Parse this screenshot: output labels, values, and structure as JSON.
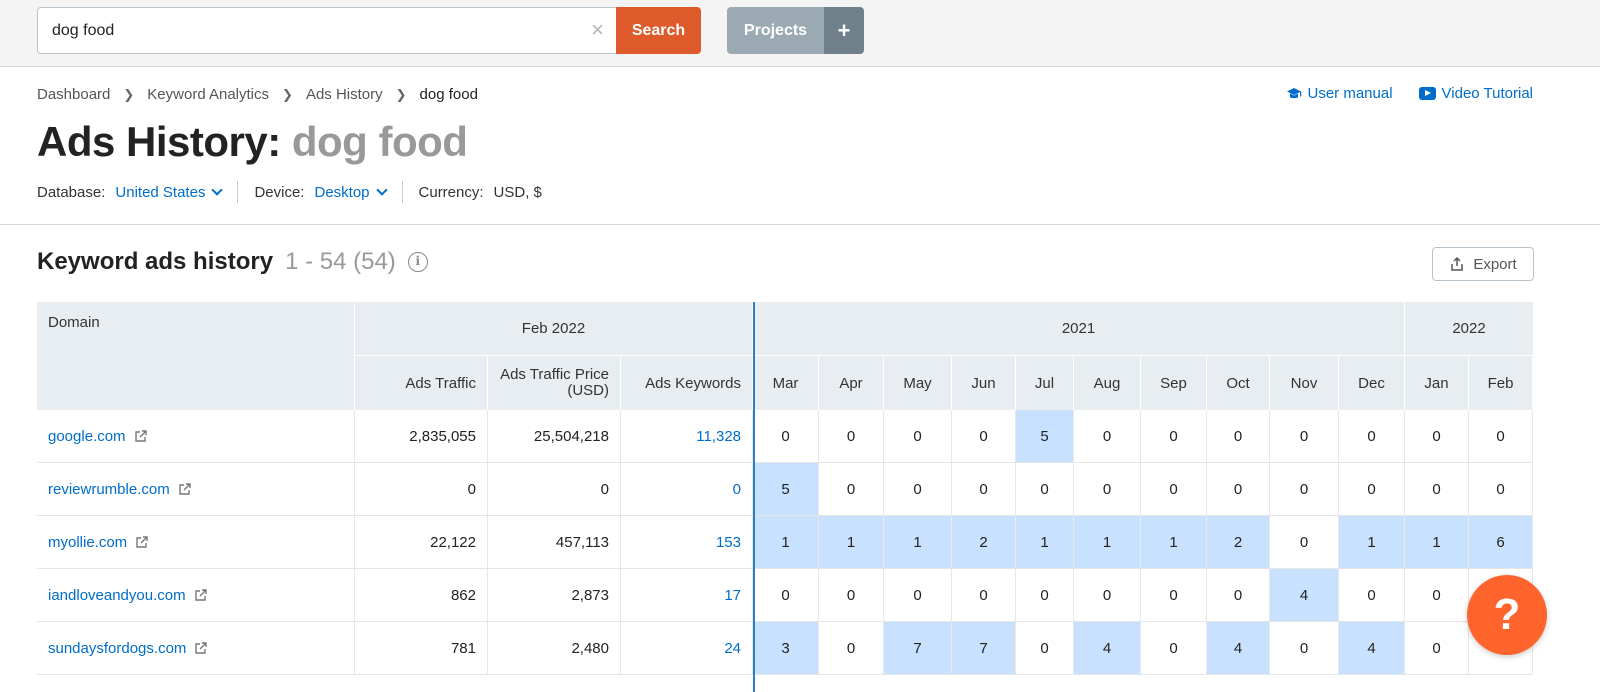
{
  "search": {
    "value": "dog food",
    "button": "Search"
  },
  "projects": {
    "label": "Projects",
    "add": "+"
  },
  "breadcrumb": [
    "Dashboard",
    "Keyword Analytics",
    "Ads History",
    "dog food"
  ],
  "help": {
    "manual": "User manual",
    "video": "Video Tutorial"
  },
  "title": {
    "prefix": "Ads History:",
    "keyword": "dog food"
  },
  "meta": {
    "database_label": "Database:",
    "database_value": "United States",
    "device_label": "Device:",
    "device_value": "Desktop",
    "currency_label": "Currency:",
    "currency_value": "USD, $"
  },
  "section": {
    "title": "Keyword ads history",
    "count": "1 - 54 (54)",
    "export": "Export"
  },
  "table": {
    "domain_header": "Domain",
    "group_feb": "Feb 2022",
    "group_2021": "2021",
    "group_2022": "2022",
    "sub_headers": [
      "Ads Traffic",
      "Ads Traffic Price (USD)",
      "Ads Keywords"
    ],
    "months": [
      "Mar",
      "Apr",
      "May",
      "Jun",
      "Jul",
      "Aug",
      "Sep",
      "Oct",
      "Nov",
      "Dec",
      "Jan",
      "Feb"
    ],
    "rows": [
      {
        "domain": "google.com",
        "traffic": "2,835,055",
        "price": "25,504,218",
        "keywords": "11,328",
        "months": [
          "0",
          "0",
          "0",
          "0",
          "5",
          "0",
          "0",
          "0",
          "0",
          "0",
          "0",
          "0"
        ]
      },
      {
        "domain": "reviewrumble.com",
        "traffic": "0",
        "price": "0",
        "keywords": "0",
        "months": [
          "5",
          "0",
          "0",
          "0",
          "0",
          "0",
          "0",
          "0",
          "0",
          "0",
          "0",
          "0"
        ]
      },
      {
        "domain": "myollie.com",
        "traffic": "22,122",
        "price": "457,113",
        "keywords": "153",
        "months": [
          "1",
          "1",
          "1",
          "2",
          "1",
          "1",
          "1",
          "2",
          "0",
          "1",
          "1",
          "6"
        ]
      },
      {
        "domain": "iandloveandyou.com",
        "traffic": "862",
        "price": "2,873",
        "keywords": "17",
        "months": [
          "0",
          "0",
          "0",
          "0",
          "0",
          "0",
          "0",
          "0",
          "4",
          "0",
          "0",
          ""
        ]
      },
      {
        "domain": "sundaysfordogs.com",
        "traffic": "781",
        "price": "2,480",
        "keywords": "24",
        "months": [
          "3",
          "0",
          "7",
          "7",
          "0",
          "4",
          "0",
          "4",
          "0",
          "4",
          "0",
          ""
        ]
      }
    ]
  },
  "fab": {
    "label": "?"
  }
}
